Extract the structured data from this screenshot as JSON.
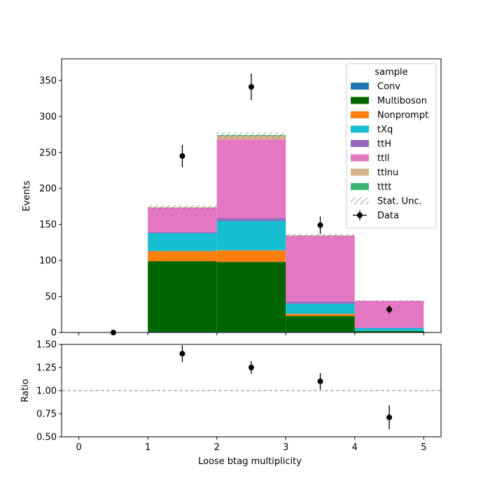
{
  "chart_data": [
    {
      "type": "bar",
      "stacked": true,
      "ylabel": "Events",
      "ylim": [
        0,
        380
      ],
      "yticks": [
        0,
        50,
        100,
        150,
        200,
        250,
        300,
        350
      ],
      "bins": [
        [
          0,
          1
        ],
        [
          1,
          2
        ],
        [
          2,
          3
        ],
        [
          3,
          4
        ],
        [
          4,
          5
        ]
      ],
      "legend": {
        "title": "sample",
        "placement": "top-right"
      },
      "series": [
        {
          "name": "Conv",
          "color": "#1f77b4",
          "values": [
            0,
            1,
            1,
            1,
            0
          ]
        },
        {
          "name": "Multiboson",
          "color": "#006400",
          "values": [
            0,
            98,
            97,
            22,
            2
          ]
        },
        {
          "name": "Nonprompt",
          "color": "#ff7f0e",
          "values": [
            0,
            14,
            16,
            3,
            0
          ]
        },
        {
          "name": "tXq",
          "color": "#17becf",
          "values": [
            0,
            25,
            41,
            14,
            4
          ]
        },
        {
          "name": "ttH",
          "color": "#9467bd",
          "values": [
            0,
            1,
            4,
            3,
            1
          ]
        },
        {
          "name": "ttll",
          "color": "#e377c2",
          "values": [
            0,
            34,
            109,
            91,
            37
          ]
        },
        {
          "name": "ttlnu",
          "color": "#d2b48c",
          "values": [
            0,
            1,
            5,
            1,
            0
          ]
        },
        {
          "name": "tttt",
          "color": "#3cb371",
          "values": [
            0,
            0,
            1,
            0,
            0
          ]
        }
      ],
      "stat_unc": {
        "name": "Stat. Unc.",
        "halfwidth": [
          0,
          3,
          4,
          2,
          1
        ]
      },
      "data": {
        "name": "Data",
        "x": [
          0.5,
          1.5,
          2.5,
          3.5,
          4.5
        ],
        "y": [
          0,
          245,
          341,
          149,
          32
        ],
        "yerr": [
          0,
          15.7,
          18.5,
          12.2,
          5.7
        ]
      }
    },
    {
      "type": "scatter",
      "xlabel": "Loose btag multiplicity",
      "ylabel": "Ratio",
      "ylim": [
        0.5,
        1.5
      ],
      "yticks": [
        "0.50",
        "0.75",
        "1.00",
        "1.25",
        "1.50"
      ],
      "xlim": [
        -0.25,
        5.25
      ],
      "xticks": [
        "0",
        "1",
        "2",
        "3",
        "4",
        "5"
      ],
      "reference_line": 1.0,
      "points": {
        "x": [
          1.5,
          2.5,
          3.5,
          4.5
        ],
        "y": [
          1.4,
          1.25,
          1.1,
          0.71
        ],
        "yerr": [
          0.09,
          0.07,
          0.09,
          0.13
        ]
      }
    }
  ]
}
